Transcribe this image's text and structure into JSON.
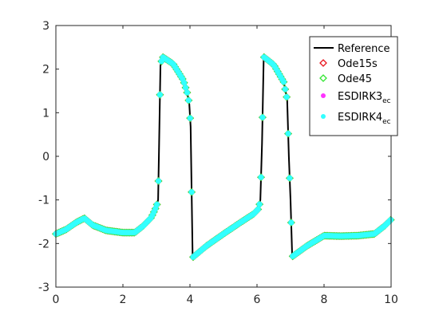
{
  "chart_data": {
    "type": "line",
    "title": "",
    "xlabel": "",
    "ylabel": "",
    "xlim": [
      0,
      10
    ],
    "ylim": [
      -3,
      3
    ],
    "xticks": [
      0,
      2,
      4,
      6,
      8,
      10
    ],
    "yticks": [
      -3,
      -2,
      -1,
      0,
      1,
      2,
      3
    ],
    "xtick_labels": [
      "0",
      "2",
      "4",
      "6",
      "8",
      "10"
    ],
    "ytick_labels": [
      "-3",
      "-2",
      "-1",
      "0",
      "1",
      "2",
      "3"
    ],
    "grid": false,
    "legend_position": "top-right",
    "colors": {
      "reference": "#000000",
      "ode15s": "#e8141c",
      "ode45": "#33e633",
      "esdirk3": "#ff33ff",
      "esdirk4": "#33ffff"
    },
    "legend": [
      {
        "key": "reference",
        "marker": "line",
        "label": "Reference",
        "sub": ""
      },
      {
        "key": "ode15s",
        "marker": "diamond",
        "label": "Ode15s",
        "sub": ""
      },
      {
        "key": "ode45",
        "marker": "diamond",
        "label": "Ode45",
        "sub": ""
      },
      {
        "key": "esdirk3",
        "marker": "dot",
        "label": "ESDIRK3",
        "sub": "ec"
      },
      {
        "key": "esdirk4",
        "marker": "dot",
        "label": "ESDIRK4",
        "sub": "ec"
      }
    ],
    "reference_curve": [
      [
        0.0,
        -1.78
      ],
      [
        0.3,
        -1.68
      ],
      [
        0.6,
        -1.52
      ],
      [
        0.85,
        -1.42
      ],
      [
        1.1,
        -1.58
      ],
      [
        1.5,
        -1.7
      ],
      [
        2.0,
        -1.75
      ],
      [
        2.35,
        -1.75
      ],
      [
        2.6,
        -1.6
      ],
      [
        2.85,
        -1.4
      ],
      [
        3.0,
        -1.15
      ],
      [
        3.05,
        -1.0
      ],
      [
        3.08,
        0.3
      ],
      [
        3.12,
        2.08
      ],
      [
        3.18,
        2.28
      ],
      [
        3.5,
        2.12
      ],
      [
        3.8,
        1.75
      ],
      [
        3.92,
        1.45
      ],
      [
        3.98,
        1.2
      ],
      [
        4.02,
        0.68
      ],
      [
        4.08,
        -2.32
      ],
      [
        4.5,
        -2.05
      ],
      [
        5.0,
        -1.78
      ],
      [
        5.5,
        -1.52
      ],
      [
        5.9,
        -1.32
      ],
      [
        6.05,
        -1.2
      ],
      [
        6.1,
        -1.0
      ],
      [
        6.15,
        0.3
      ],
      [
        6.2,
        2.28
      ],
      [
        6.5,
        2.1
      ],
      [
        6.8,
        1.7
      ],
      [
        6.9,
        1.3
      ],
      [
        6.95,
        0.0
      ],
      [
        7.0,
        -1.0
      ],
      [
        7.05,
        -2.3
      ],
      [
        7.5,
        -2.05
      ],
      [
        8.0,
        -1.82
      ],
      [
        8.5,
        -1.83
      ],
      [
        9.0,
        -1.82
      ],
      [
        9.5,
        -1.78
      ],
      [
        9.8,
        -1.6
      ],
      [
        10.0,
        -1.45
      ]
    ],
    "marker_series": [
      "ode15s",
      "ode45",
      "esdirk3",
      "esdirk4"
    ],
    "marker_spacing": 0.045
  }
}
